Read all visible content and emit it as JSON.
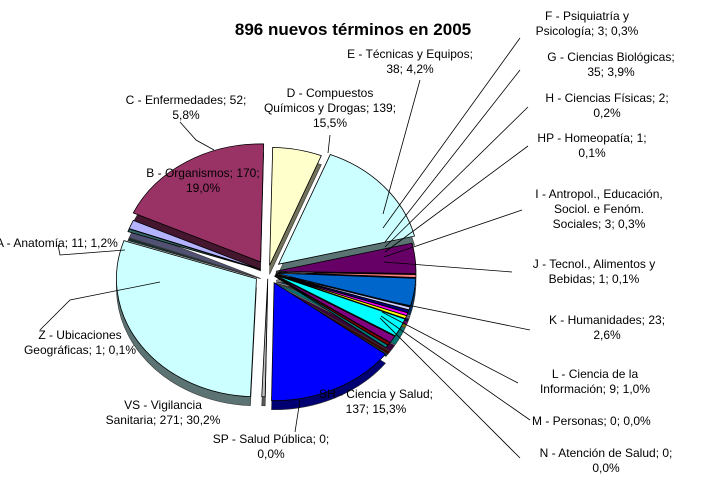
{
  "chart_data": {
    "type": "pie",
    "title": "896 nuevos términos en 2005",
    "total": 896,
    "slices": [
      {
        "name": "A - Anatomía",
        "value": 11,
        "percent": "1,2%",
        "color": "#b3b3ff",
        "line1": "A - Anatomía; 11; 1,2%",
        "line2": ""
      },
      {
        "name": "B - Organismos",
        "value": 170,
        "percent": "19,0%",
        "color": "#993366",
        "line1": "B - Organismos; 170;",
        "line2": "19,0%"
      },
      {
        "name": "C - Enfermedades",
        "value": 52,
        "percent": "5,8%",
        "color": "#ffffcc",
        "line1": "C - Enfermedades; 52;",
        "line2": "5,8%"
      },
      {
        "name": "D - Compuestos Químicos y Drogas",
        "value": 139,
        "percent": "15,5%",
        "color": "#ccffff",
        "line1": "D - Compuestos",
        "line2": "Químicos y Drogas; 139;",
        "line3": "15,5%"
      },
      {
        "name": "E - Técnicas y Equipos",
        "value": 38,
        "percent": "4,2%",
        "color": "#660066",
        "line1": "E - Técnicas y Equipos;",
        "line2": "38; 4,2%"
      },
      {
        "name": "F - Psiquiatría y Psicología",
        "value": 3,
        "percent": "0,3%",
        "color": "#ff8080",
        "line1": "F - Psiquiatría y",
        "line2": "Psicología; 3; 0,3%"
      },
      {
        "name": "G - Ciencias Biológicas",
        "value": 35,
        "percent": "3,9%",
        "color": "#0066cc",
        "line1": "G - Ciencias Biológicas;",
        "line2": "35; 3,9%"
      },
      {
        "name": "H - Ciencias Físicas",
        "value": 2,
        "percent": "0,2%",
        "color": "#ccccff",
        "line1": "H - Ciencias Físicas; 2;",
        "line2": "0,2%"
      },
      {
        "name": "HP - Homeopatía",
        "value": 1,
        "percent": "0,1%",
        "color": "#000080",
        "line1": "HP - Homeopatía; 1;",
        "line2": "0,1%"
      },
      {
        "name": "I - Antropol., Educación, Sociol. e Fenóm. Sociales",
        "value": 3,
        "percent": "0,3%",
        "color": "#ff00ff",
        "line1": "I - Antropol., Educación,",
        "line2": "Sociol. e Fenóm.",
        "line3": "Sociales; 3; 0,3%"
      },
      {
        "name": "J - Tecnol., Alimentos y Bebidas",
        "value": 1,
        "percent": "0,1%",
        "color": "#ffff00",
        "line1": "J - Tecnol., Alimentos y",
        "line2": "Bebidas; 1; 0,1%"
      },
      {
        "name": "K - Humanidades",
        "value": 23,
        "percent": "2,6%",
        "color": "#00ffff",
        "line1": "K - Humanidades; 23;",
        "line2": "2,6%"
      },
      {
        "name": "L - Ciencia de la Información",
        "value": 9,
        "percent": "1,0%",
        "color": "#800080",
        "line1": "L - Ciencia de la",
        "line2": "Información; 9; 1,0%"
      },
      {
        "name": "M - Personas",
        "value": 0,
        "percent": "0,0%",
        "color": "#800000",
        "line1": "M - Personas; 0; 0,0%",
        "line2": ""
      },
      {
        "name": "N - Atención de Salud",
        "value": 0,
        "percent": "0,0%",
        "color": "#008080",
        "line1": "N - Atención de Salud; 0;",
        "line2": "0,0%"
      },
      {
        "name": "SH - Ciencia y Salud",
        "value": 137,
        "percent": "15,3%",
        "color": "#0000ff",
        "line1": "SH - Ciencia y Salud;",
        "line2": "137; 15,3%"
      },
      {
        "name": "SP - Salud Pública",
        "value": 0,
        "percent": "0,0%",
        "color": "#c0c0c0",
        "line1": "SP - Salud Pública; 0;",
        "line2": "0,0%"
      },
      {
        "name": "VS - Vigilancia Sanitaria",
        "value": 271,
        "percent": "30,2%",
        "color": "#ccffff",
        "line1": "VS - Vigilancia",
        "line2": "Sanitaria; 271; 30,2%"
      },
      {
        "name": "Z - Ubicaciones Geográficas",
        "value": 1,
        "percent": "0,1%",
        "color": "#336666",
        "line1": "Z - Ubicaciones",
        "line2": "Geográficas; 1; 0,1%"
      }
    ],
    "legend": "none",
    "grid": false
  }
}
